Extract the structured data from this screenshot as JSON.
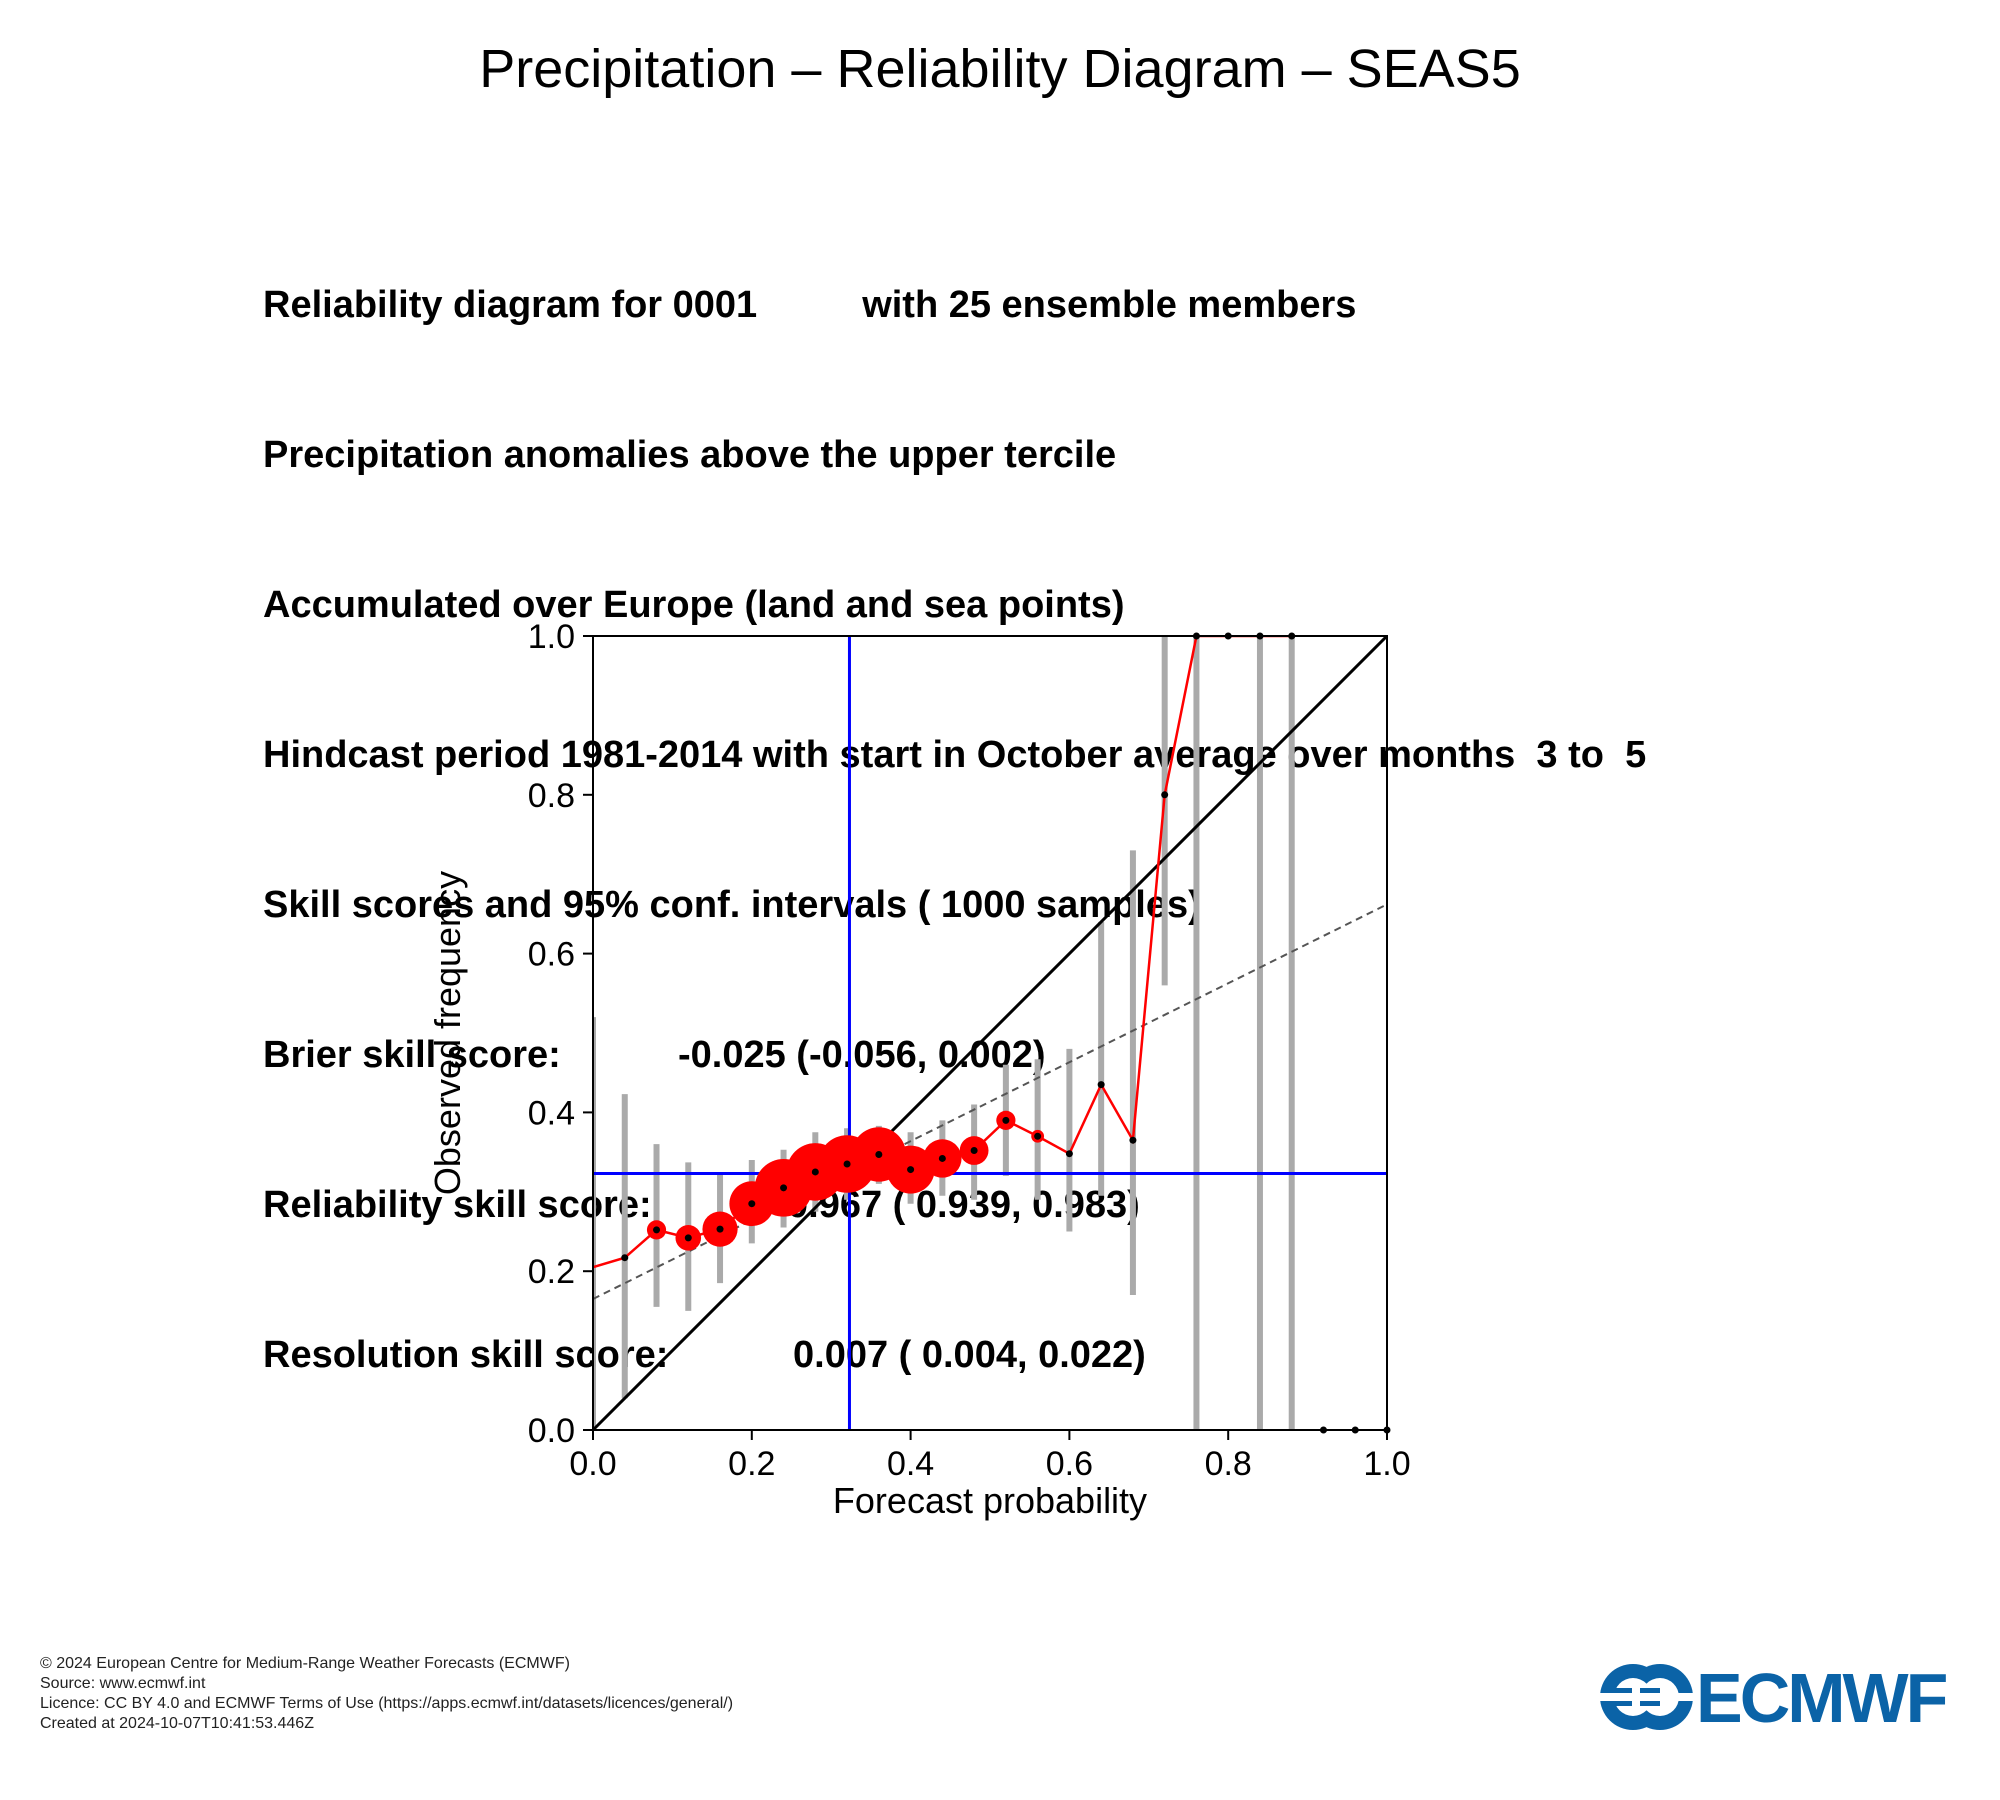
{
  "title": "Precipitation – Reliability Diagram – SEAS5",
  "info": {
    "line1_left": "Reliability diagram for 0001",
    "line1_right": "with 25 ensemble members",
    "line2": "Precipitation anomalies above the upper tercile",
    "line3": "Accumulated over Europe (land and sea points)",
    "line4": "Hindcast period 1981-2014 with start in October average over months  3 to  5",
    "line5": "Skill scores and 95% conf. intervals ( 1000 samples)",
    "brier_label": "Brier skill score:",
    "brier_value": "-0.025 (-0.056, 0.002)",
    "reliability_label": "Reliability skill score:",
    "reliability_value": "0.967 ( 0.939, 0.983)",
    "resolution_label": "Resolution skill score:",
    "resolution_value": "0.007 ( 0.004, 0.022)"
  },
  "chart_data": {
    "type": "line",
    "xlabel": "Forecast probability",
    "ylabel": "Observed frequency",
    "xlim": [
      0,
      1
    ],
    "ylim": [
      0,
      1
    ],
    "xticks": [
      "0.0",
      "0.2",
      "0.4",
      "0.6",
      "0.8",
      "1.0"
    ],
    "yticks": [
      "0.0",
      "0.2",
      "0.4",
      "0.6",
      "0.8",
      "1.0"
    ],
    "climatology": 0.323,
    "diagonal": [
      [
        0,
        0
      ],
      [
        1,
        1
      ]
    ],
    "regression_line": [
      [
        0,
        0.165
      ],
      [
        1,
        0.662
      ]
    ],
    "series": [
      {
        "x": [
          0.0,
          0.04,
          0.08,
          0.12,
          0.16,
          0.2,
          0.24,
          0.28,
          0.32,
          0.36,
          0.4,
          0.44,
          0.48,
          0.52,
          0.56,
          0.6,
          0.64,
          0.68,
          0.72,
          0.76,
          0.8,
          0.84,
          0.88,
          0.92,
          0.96,
          1.0
        ],
        "y": [
          0.205,
          0.217,
          0.252,
          0.242,
          0.253,
          0.285,
          0.305,
          0.325,
          0.335,
          0.347,
          0.328,
          0.342,
          0.352,
          0.39,
          0.37,
          0.348,
          0.435,
          0.365,
          0.8,
          1.0,
          1.0,
          1.0,
          1.0,
          0.0,
          0.0,
          0.0
        ],
        "marker_size": [
          0,
          2,
          6,
          8,
          11,
          14,
          18,
          18,
          18,
          17,
          15,
          12,
          9,
          6,
          4,
          2,
          2,
          2,
          2,
          2,
          2,
          2,
          2,
          2,
          2,
          2
        ],
        "ci_low": [
          0.0,
          0.04,
          0.155,
          0.15,
          0.185,
          0.235,
          0.255,
          0.275,
          0.29,
          0.31,
          0.285,
          0.295,
          0.29,
          0.32,
          0.29,
          0.25,
          0.295,
          0.17,
          0.56,
          0.0,
          null,
          0.0,
          0.0,
          null,
          null,
          null
        ],
        "ci_high": [
          0.52,
          0.423,
          0.36,
          0.337,
          0.325,
          0.34,
          0.353,
          0.375,
          0.38,
          0.383,
          0.375,
          0.39,
          0.41,
          0.46,
          0.467,
          0.48,
          0.64,
          0.73,
          1.0,
          1.0,
          null,
          1.0,
          1.0,
          null,
          null,
          null
        ]
      }
    ]
  },
  "footer": [
    "© 2024 European Centre for Medium-Range Weather Forecasts (ECMWF)",
    "Source: www.ecmwf.int",
    "Licence: CC BY 4.0 and ECMWF Terms of Use (https://apps.ecmwf.int/datasets/licences/general/)",
    "Created at 2024-10-07T10:41:53.446Z"
  ],
  "logo": {
    "text": "ECMWF",
    "color": "#0b63a7"
  },
  "colors": {
    "diagonal": "#000000",
    "climatology": "#0000ff",
    "regression": "#555555",
    "series": "#ff0000",
    "ci": "#aaaaaa"
  }
}
